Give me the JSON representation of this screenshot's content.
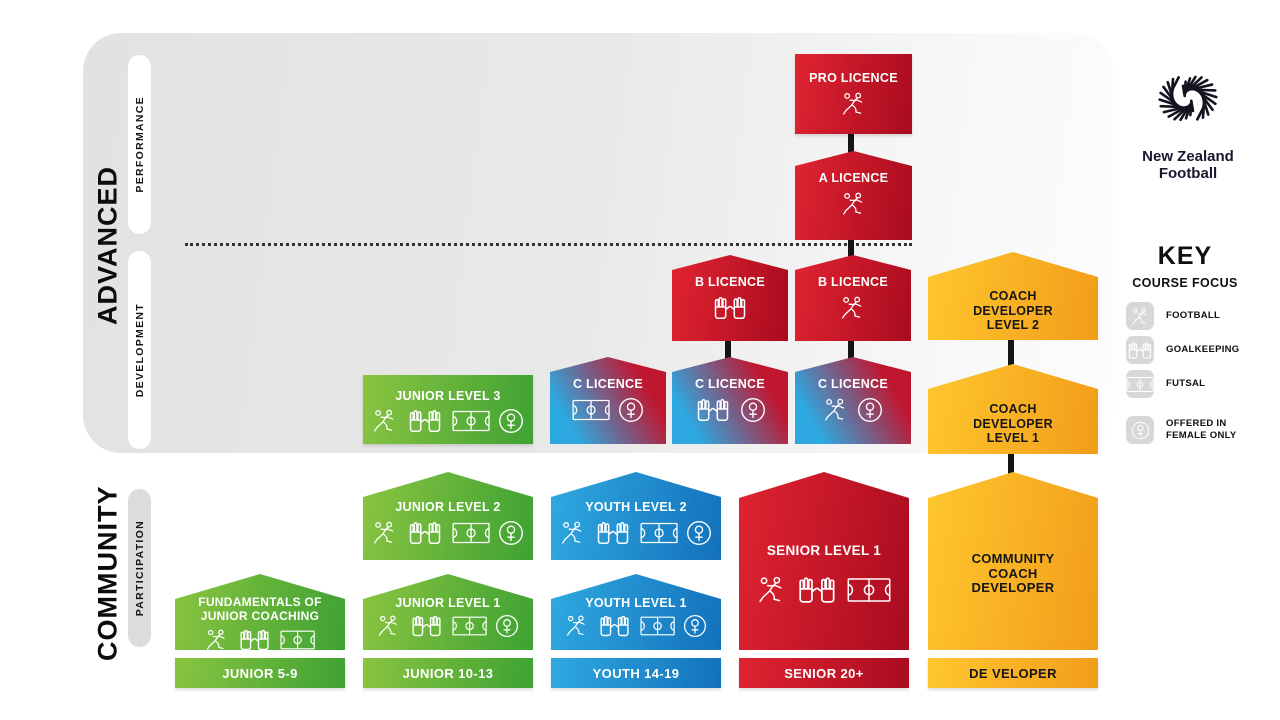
{
  "logo": {
    "line1": "New Zealand",
    "line2": "Football"
  },
  "sections": {
    "advanced": {
      "label": "ADVANCED",
      "phases": [
        {
          "label": "PERFORMANCE"
        },
        {
          "label": "DEVELOPMENT"
        }
      ]
    },
    "community": {
      "label": "COMMUNITY",
      "phases": [
        {
          "label": "PARTICIPATION"
        }
      ]
    }
  },
  "key": {
    "title": "KEY",
    "subtitle": "COURSE FOCUS",
    "items": [
      {
        "icon": "football",
        "label": "FOOTBALL"
      },
      {
        "icon": "goalkeeping",
        "label": "GOALKEEPING"
      },
      {
        "icon": "futsal",
        "label": "FUTSAL"
      },
      {
        "icon": "female",
        "label": "OFFERED IN\nFEMALE ONLY"
      }
    ]
  },
  "cards": [
    {
      "id": "pro-licence",
      "title": "PRO LICENCE",
      "icons": [
        "football"
      ],
      "theme": "red",
      "shape": "shape-rect"
    },
    {
      "id": "a-licence",
      "title": "A LICENCE",
      "icons": [
        "football"
      ],
      "theme": "red",
      "shape": "house-sm"
    },
    {
      "id": "b-licence-goalkeeping",
      "title": "B LICENCE",
      "icons": [
        "goalkeeping"
      ],
      "theme": "red",
      "shape": "house-sm"
    },
    {
      "id": "b-licence-football",
      "title": "B LICENCE",
      "icons": [
        "football"
      ],
      "theme": "red",
      "shape": "house-sm"
    },
    {
      "id": "coach-developer-level-2",
      "title": "COACH\nDEVELOPER\nLEVEL 2",
      "icons": [],
      "theme": "orange",
      "shape": "house-md"
    },
    {
      "id": "junior-level-3",
      "title": "JUNIOR LEVEL 3",
      "icons": [
        "football",
        "goalkeeping",
        "futsal",
        "female"
      ],
      "theme": "green",
      "shape": "shape-rect"
    },
    {
      "id": "c-licence-futsal",
      "title": "C LICENCE",
      "icons": [
        "futsal",
        "female"
      ],
      "theme": "bluered",
      "shape": "house-sm"
    },
    {
      "id": "c-licence-goalkeeping",
      "title": "C LICENCE",
      "icons": [
        "goalkeeping",
        "female"
      ],
      "theme": "bluered",
      "shape": "house-sm"
    },
    {
      "id": "c-licence-football",
      "title": "C LICENCE",
      "icons": [
        "football",
        "female"
      ],
      "theme": "bluered",
      "shape": "house-sm"
    },
    {
      "id": "coach-developer-level-1",
      "title": "COACH\nDEVELOPER\nLEVEL 1",
      "icons": [],
      "theme": "orange",
      "shape": "house-md"
    },
    {
      "id": "junior-level-2",
      "title": "JUNIOR LEVEL 2",
      "icons": [
        "football",
        "goalkeeping",
        "futsal",
        "female"
      ],
      "theme": "green",
      "shape": "house-md"
    },
    {
      "id": "youth-level-2",
      "title": "YOUTH LEVEL 2",
      "icons": [
        "football",
        "goalkeeping",
        "futsal",
        "female"
      ],
      "theme": "blue",
      "shape": "house-md"
    },
    {
      "id": "fundamentals-of-junior-coaching",
      "title": "FUNDAMENTALS OF\nJUNIOR COACHING",
      "icons": [
        "football",
        "goalkeeping",
        "futsal"
      ],
      "theme": "green",
      "shape": "house-md"
    },
    {
      "id": "junior-level-1",
      "title": "JUNIOR LEVEL 1",
      "icons": [
        "football",
        "goalkeeping",
        "futsal",
        "female"
      ],
      "theme": "green",
      "shape": "house-md"
    },
    {
      "id": "youth-level-1",
      "title": "YOUTH LEVEL 1",
      "icons": [
        "football",
        "goalkeeping",
        "futsal",
        "female"
      ],
      "theme": "blue",
      "shape": "house-md"
    },
    {
      "id": "senior-level-1",
      "title": "SENIOR LEVEL 1",
      "icons": [
        "football",
        "goalkeeping",
        "futsal"
      ],
      "theme": "red",
      "shape": "house-lg"
    },
    {
      "id": "community-coach-developer",
      "title": "COMMUNITY\nCOACH\nDEVELOPER",
      "icons": [],
      "theme": "orange",
      "shape": "house-lg"
    }
  ],
  "footers": [
    {
      "id": "junior-5-9",
      "label": "JUNIOR 5-9",
      "theme": "green"
    },
    {
      "id": "junior-10-13",
      "label": "JUNIOR 10-13",
      "theme": "green"
    },
    {
      "id": "youth-14-19",
      "label": "YOUTH 14-19",
      "theme": "blue"
    },
    {
      "id": "senior-20plus",
      "label": "SENIOR 20+",
      "theme": "red"
    },
    {
      "id": "developer",
      "label": "DE VELOPER",
      "theme": "orange"
    }
  ],
  "colors": {
    "red_from": "#E02431",
    "red_to": "#A90B1F",
    "green_from": "#8AC441",
    "green_to": "#3EA233",
    "blue_from": "#2FA9E1",
    "blue_to": "#1371BB",
    "orange_from": "#FFC72E",
    "orange_to": "#F29C1A",
    "bluered_from": "#2EA8E0",
    "bluered_to": "#C01731",
    "panel_gray": "#E2E2E2",
    "key_box_gray": "#D8D8D8",
    "connector_black": "#141414"
  }
}
